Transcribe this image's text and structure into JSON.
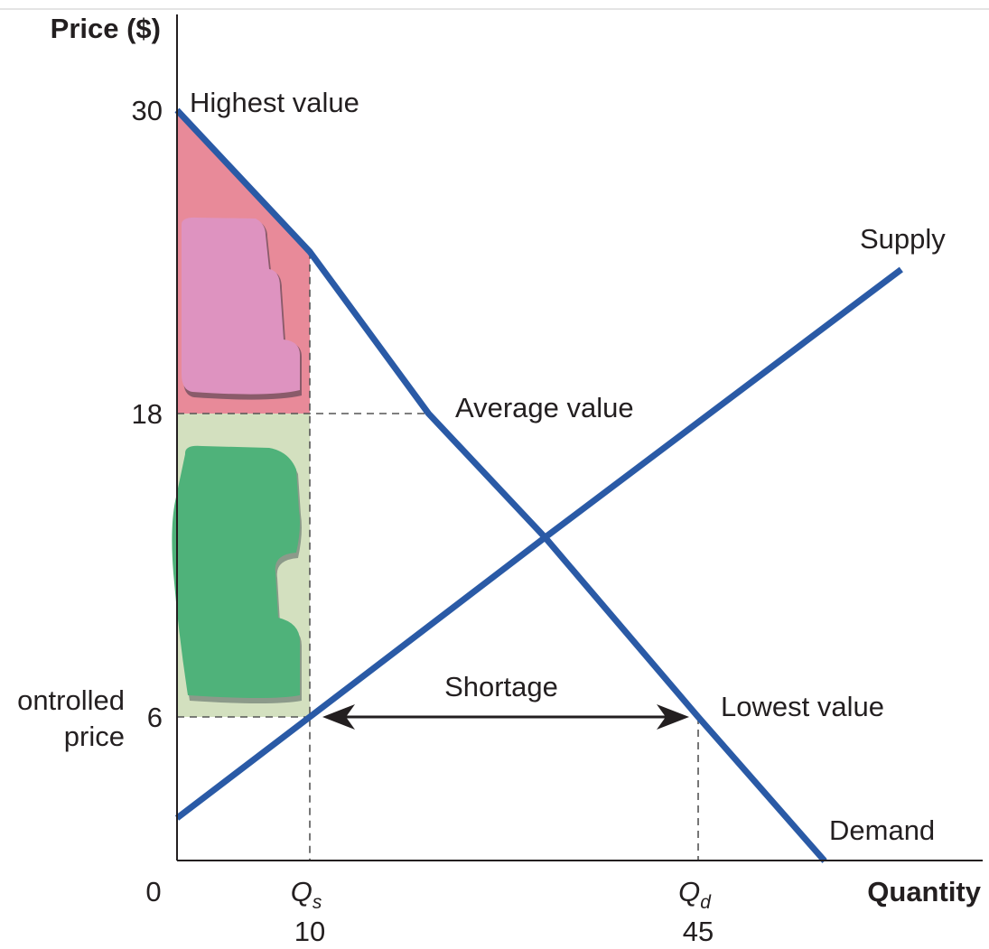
{
  "chart_data": {
    "type": "line",
    "title": "",
    "ylabel": "Price ($)",
    "xlabel": "Quantity",
    "origin_label": "0",
    "y_ticks": [
      30,
      18,
      6
    ],
    "x_ticks": [
      {
        "symbol": "Q",
        "sub": "s",
        "value": "10",
        "q": 10
      },
      {
        "symbol": "Q",
        "sub": "d",
        "value": "45",
        "q": 45
      }
    ],
    "controlled_price_label": [
      "ontrolled",
      "price"
    ],
    "controlled_price": 6,
    "series": [
      {
        "name": "Demand",
        "color": "#2a5aa6",
        "points": [
          [
            0,
            30
          ],
          [
            10,
            24.4
          ],
          [
            20.7,
            18
          ],
          [
            31.2,
            13.1
          ],
          [
            45,
            6
          ],
          [
            56.4,
            0.3
          ]
        ]
      },
      {
        "name": "Supply",
        "color": "#2a5aa6",
        "points": [
          [
            0,
            2
          ],
          [
            10,
            6
          ],
          [
            31.2,
            13.1
          ],
          [
            63.3,
            23.7
          ]
        ]
      }
    ],
    "annotations": {
      "highest": "Highest value",
      "average": "Average value",
      "lowest": "Lowest value",
      "shortage": "Shortage",
      "supply": "Supply",
      "demand": "Demand"
    },
    "regions": {
      "consumer_value_high": {
        "color": "#e88a99",
        "from_price": 18,
        "to_price": 30,
        "q_range": [
          0,
          10
        ]
      },
      "consumer_value_low": {
        "color": "#d3e0bf",
        "from_price": 6,
        "to_price": 18,
        "q_range": [
          0,
          10
        ]
      },
      "pink_mark_color": "#de93c0",
      "green_mark_color": "#4fb27a"
    },
    "average_value_price": 18,
    "shortage_range": [
      10,
      45
    ]
  }
}
